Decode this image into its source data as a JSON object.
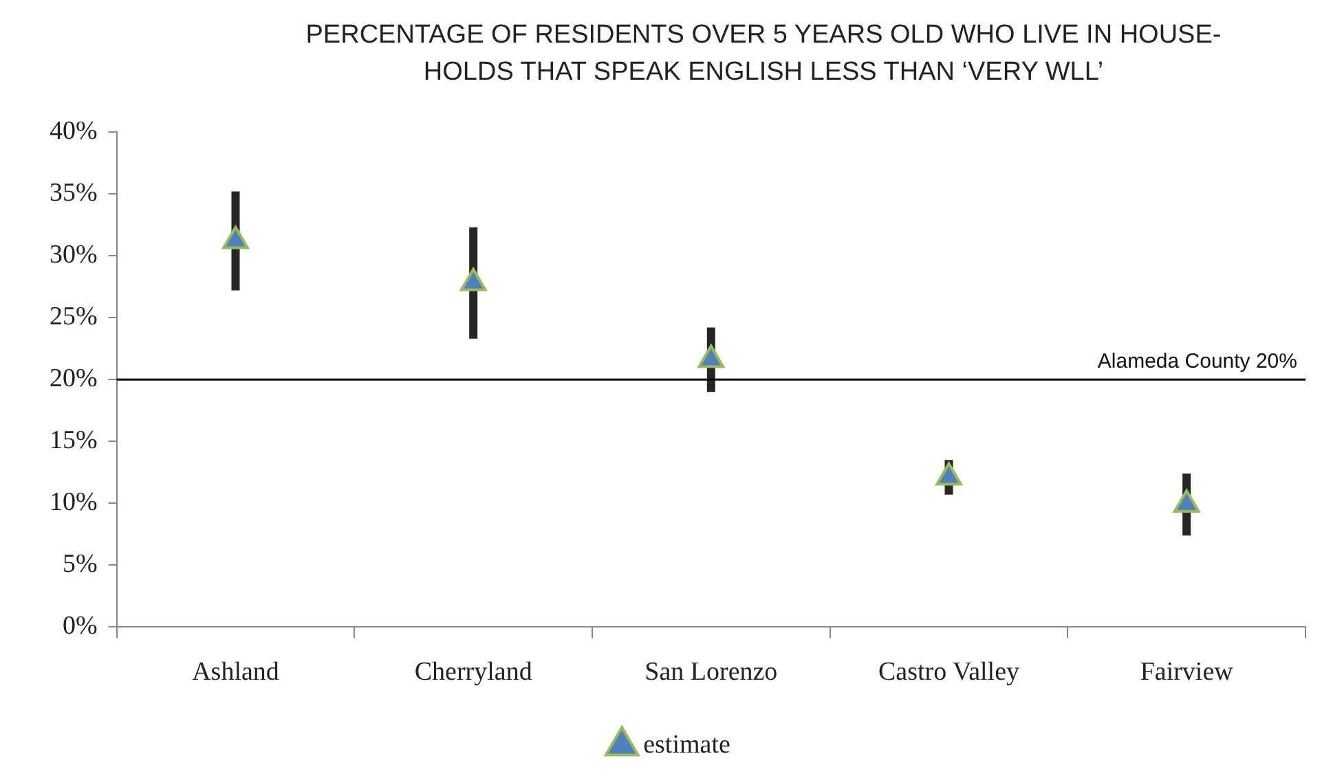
{
  "chart_data": {
    "type": "scatter",
    "title": "PERCENTAGE OF RESIDENTS OVER 5 YEARS OLD WHO LIVE IN HOUSE-HOLDS THAT SPEAK ENGLISH LESS THAN ‘VERY WLL’",
    "categories": [
      "Ashland",
      "Cherryland",
      "San Lorenzo",
      "Castro Valley",
      "Fairview"
    ],
    "series": [
      {
        "name": "estimate",
        "color": "#4f81bd",
        "values": [
          31.2,
          27.8,
          21.6,
          12.1,
          9.9
        ],
        "errors": [
          4.0,
          4.5,
          2.6,
          1.4,
          2.5
        ]
      }
    ],
    "ylim": [
      0,
      40
    ],
    "yticks": [
      {
        "value": 0,
        "label": "0%"
      },
      {
        "value": 5,
        "label": "5%"
      },
      {
        "value": 10,
        "label": "10%"
      },
      {
        "value": 15,
        "label": "15%"
      },
      {
        "value": 20,
        "label": "20%"
      },
      {
        "value": 25,
        "label": "25%"
      },
      {
        "value": 30,
        "label": "30%"
      },
      {
        "value": 35,
        "label": "35%"
      },
      {
        "value": 40,
        "label": "40%"
      }
    ],
    "ref_lines": [
      {
        "axis": "y",
        "value": 20,
        "label": "Alameda County 20%",
        "color": "#000000"
      }
    ],
    "marker": "triangle",
    "legend": "bottom",
    "grid": false
  }
}
